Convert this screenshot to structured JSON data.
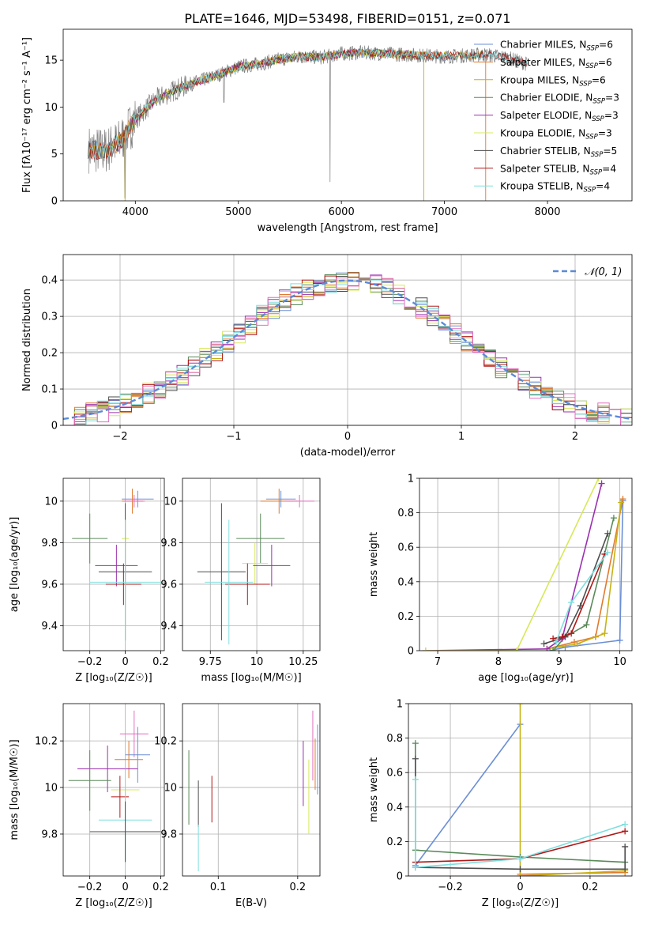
{
  "figure": {
    "title": "PLATE=1646, MJD=53498, FIBERID=0151, z=0.071"
  },
  "model_colors": {
    "Chabrier MILES": "#6b8fd6",
    "Salpeter MILES": "#e07a2e",
    "Kroupa MILES": "#c7b215",
    "Chabrier ELODIE": "#5a8a5a",
    "Salpeter ELODIE": "#9b30b0",
    "Kroupa ELODIE": "#d8e858",
    "Chabrier STELIB": "#4d4d4d",
    "Salpeter STELIB": "#b01818",
    "Kroupa STELIB": "#7fdede",
    "Pink": "#e06fc0",
    "Data": "#7f7f7f",
    "Gaussian": "#5b8ad8",
    "grid": "#b0b0b0"
  },
  "chart_data": [
    {
      "id": "spectrum",
      "type": "line",
      "title": "PLATE=1646, MJD=53498, FIBERID=0151, z=0.071",
      "xlabel": "wavelength [Angstrom, rest frame]",
      "ylabel": "Flux [fλ10⁻¹⁷ erg cm⁻² s⁻¹ A⁻¹]",
      "xlim": [
        3300,
        8820
      ],
      "ylim": [
        0,
        18.3
      ],
      "xticks": [
        4000,
        5000,
        6000,
        7000,
        8000
      ],
      "yticks": [
        0,
        5,
        10,
        15
      ],
      "grid": false,
      "legend_position": "right",
      "series": [
        {
          "name": "Chabrier MILES, N",
          "sub": "SSP",
          "suffix": "=6"
        },
        {
          "name": "Salpeter MILES, N",
          "sub": "SSP",
          "suffix": "=6"
        },
        {
          "name": "Kroupa MILES, N",
          "sub": "SSP",
          "suffix": "=6"
        },
        {
          "name": "Chabrier ELODIE, N",
          "sub": "SSP",
          "suffix": "=3"
        },
        {
          "name": "Salpeter ELODIE, N",
          "sub": "SSP",
          "suffix": "=3"
        },
        {
          "name": "Kroupa ELODIE, N",
          "sub": "SSP",
          "suffix": "=3"
        },
        {
          "name": "Chabrier STELIB, N",
          "sub": "SSP",
          "suffix": "=5"
        },
        {
          "name": "Salpeter STELIB, N",
          "sub": "SSP",
          "suffix": "=4"
        },
        {
          "name": "Kroupa STELIB, N",
          "sub": "SSP",
          "suffix": "=4"
        }
      ],
      "continuum": {
        "x": [
          3550,
          3700,
          3850,
          4000,
          4100,
          4200,
          4400,
          4600,
          4800,
          5000,
          5200,
          5400,
          5600,
          5800,
          6000,
          6200,
          6400,
          6600,
          6800,
          7000,
          7200,
          7400,
          7600,
          7800
        ],
        "y": [
          5.5,
          5.3,
          6.3,
          8.7,
          9.8,
          10.8,
          11.9,
          12.7,
          13.4,
          14.3,
          14.6,
          15.1,
          15.4,
          15.3,
          15.7,
          15.8,
          15.7,
          15.6,
          15.5,
          15.4,
          15.5,
          15.6,
          15.3,
          14.6
        ]
      }
    },
    {
      "id": "residuals",
      "type": "line",
      "xlabel": "(data-model)/error",
      "ylabel": "Normed distribution",
      "xlim": [
        -2.5,
        2.5
      ],
      "ylim": [
        0,
        0.47
      ],
      "xticks": [
        -2,
        -1,
        0,
        1,
        2
      ],
      "yticks": [
        0.0,
        0.1,
        0.2,
        0.3,
        0.4
      ],
      "grid": true,
      "legend_position": "top-right",
      "gaussian_label": "𝒩(0, 1)",
      "bin_width": 0.1,
      "hist_series_count": 10
    },
    {
      "id": "z-age",
      "type": "scatter",
      "xlabel": "Z [log₁₀(Z/Z☉)]",
      "ylabel": "age  [log₁₀(age/yr)]",
      "xlim": [
        -0.35,
        0.22
      ],
      "ylim": [
        9.28,
        10.11
      ],
      "xticks": [
        -0.2,
        0.0,
        0.2
      ],
      "yticks": [
        9.4,
        9.6,
        9.8,
        10.0
      ],
      "grid": true,
      "points": [
        {
          "model": "Chabrier MILES",
          "x": 0.07,
          "y": 10.01,
          "xerr": 0.09,
          "yerr": 0.04
        },
        {
          "model": "Salpeter MILES",
          "x": 0.04,
          "y": 10.0,
          "xerr": 0.06,
          "yerr": 0.06
        },
        {
          "model": "Pink",
          "x": 0.05,
          "y": 10.0,
          "xerr": 0.06,
          "yerr": 0.03
        },
        {
          "model": "Chabrier ELODIE",
          "x": -0.2,
          "y": 9.82,
          "xerr": 0.1,
          "yerr": 0.12
        },
        {
          "model": "Kroupa ELODIE",
          "x": 0.0,
          "y": 9.82,
          "xerr": 0.02,
          "yerr": 0.1
        },
        {
          "model": "Salpeter ELODIE",
          "x": -0.05,
          "y": 9.69,
          "xerr": 0.12,
          "yerr": 0.1
        },
        {
          "model": "Chabrier STELIB",
          "x": 0.0,
          "y": 9.66,
          "xerr": 0.15,
          "yerr": 0.33
        },
        {
          "model": "Salpeter STELIB",
          "x": -0.01,
          "y": 9.6,
          "xerr": 0.1,
          "yerr": 0.1
        },
        {
          "model": "Kroupa STELIB",
          "x": 0.0,
          "y": 9.61,
          "xerr": 0.2,
          "yerr": 0.3
        }
      ]
    },
    {
      "id": "mass-age",
      "type": "scatter",
      "xlabel": "mass [log₁₀(M/M☉)]",
      "ylabel": "",
      "xlim": [
        9.6,
        10.34
      ],
      "ylim": [
        9.28,
        10.11
      ],
      "xticks": [
        9.75,
        10.0,
        10.25
      ],
      "yticks": [
        9.4,
        9.6,
        9.8,
        10.0
      ],
      "grid": true,
      "points": [
        {
          "model": "Chabrier MILES",
          "x": 10.13,
          "y": 10.01,
          "xerr": 0.08,
          "yerr": 0.04
        },
        {
          "model": "Salpeter MILES",
          "x": 10.12,
          "y": 10.0,
          "xerr": 0.1,
          "yerr": 0.06
        },
        {
          "model": "Pink",
          "x": 10.23,
          "y": 10.0,
          "xerr": 0.08,
          "yerr": 0.03
        },
        {
          "model": "Chabrier ELODIE",
          "x": 10.02,
          "y": 9.82,
          "xerr": 0.13,
          "yerr": 0.12
        },
        {
          "model": "Kroupa ELODIE",
          "x": 9.99,
          "y": 9.7,
          "xerr": 0.07,
          "yerr": 0.1
        },
        {
          "model": "Salpeter ELODIE",
          "x": 10.08,
          "y": 9.69,
          "xerr": 0.1,
          "yerr": 0.1
        },
        {
          "model": "Chabrier STELIB",
          "x": 9.81,
          "y": 9.66,
          "xerr": 0.13,
          "yerr": 0.33
        },
        {
          "model": "Salpeter STELIB",
          "x": 9.95,
          "y": 9.6,
          "xerr": 0.12,
          "yerr": 0.1
        },
        {
          "model": "Kroupa STELIB",
          "x": 9.85,
          "y": 9.61,
          "xerr": 0.13,
          "yerr": 0.3
        }
      ]
    },
    {
      "id": "age-massweight",
      "type": "line",
      "xlabel": "age  [log₁₀(age/yr)]",
      "ylabel": "mass weight",
      "xlim": [
        6.7,
        10.2
      ],
      "ylim": [
        0,
        1.0
      ],
      "xticks": [
        7,
        8,
        9,
        10
      ],
      "yticks": [
        0.0,
        0.2,
        0.4,
        0.6,
        0.8,
        1.0
      ],
      "grid": true,
      "series": [
        {
          "model": "Chabrier MILES",
          "x": [
            8.85,
            9.1,
            10.0,
            10.05
          ],
          "y": [
            0.0,
            0.02,
            0.06,
            0.87
          ]
        },
        {
          "model": "Salpeter MILES",
          "x": [
            8.8,
            9.25,
            9.6,
            10.05
          ],
          "y": [
            0.01,
            0.05,
            0.08,
            0.88
          ]
        },
        {
          "model": "Kroupa MILES",
          "x": [
            8.8,
            9.3,
            9.75,
            10.02
          ],
          "y": [
            0.01,
            0.04,
            0.1,
            0.86
          ]
        },
        {
          "model": "Chabrier ELODIE",
          "x": [
            8.9,
            9.1,
            9.45,
            9.9
          ],
          "y": [
            0.0,
            0.08,
            0.15,
            0.77
          ]
        },
        {
          "model": "Salpeter ELODIE",
          "x": [
            6.8,
            8.8,
            9.05,
            9.7
          ],
          "y": [
            0.0,
            0.01,
            0.07,
            0.97
          ]
        },
        {
          "model": "Kroupa ELODIE",
          "x": [
            6.8,
            8.3,
            9.65
          ],
          "y": [
            0.0,
            0.0,
            1.0
          ]
        },
        {
          "model": "Chabrier STELIB",
          "x": [
            8.75,
            9.1,
            9.35,
            9.8
          ],
          "y": [
            0.04,
            0.08,
            0.26,
            0.68
          ]
        },
        {
          "model": "Salpeter STELIB",
          "x": [
            8.9,
            9.05,
            9.2,
            9.75
          ],
          "y": [
            0.07,
            0.08,
            0.1,
            0.56
          ]
        },
        {
          "model": "Kroupa STELIB",
          "x": [
            8.95,
            9.2,
            9.8
          ],
          "y": [
            0.05,
            0.28,
            0.57
          ]
        }
      ]
    },
    {
      "id": "z-mass",
      "type": "scatter",
      "xlabel": "Z [log₁₀(Z/Z☉)]",
      "ylabel": "mass [log₁₀(M/M☉)]",
      "xlim": [
        -0.35,
        0.22
      ],
      "ylim": [
        9.62,
        10.36
      ],
      "xticks": [
        -0.2,
        0.0,
        0.2
      ],
      "yticks": [
        9.8,
        10.0,
        10.2
      ],
      "grid": true,
      "points": [
        {
          "model": "Pink",
          "x": 0.05,
          "y": 10.23,
          "xerr": 0.08,
          "yerr": 0.1
        },
        {
          "model": "Chabrier MILES",
          "x": 0.07,
          "y": 10.14,
          "xerr": 0.07,
          "yerr": 0.12
        },
        {
          "model": "Salpeter MILES",
          "x": 0.02,
          "y": 10.12,
          "xerr": 0.08,
          "yerr": 0.08
        },
        {
          "model": "Salpeter ELODIE",
          "x": -0.1,
          "y": 10.08,
          "xerr": 0.17,
          "yerr": 0.1
        },
        {
          "model": "Chabrier ELODIE",
          "x": -0.2,
          "y": 10.03,
          "xerr": 0.12,
          "yerr": 0.13
        },
        {
          "model": "Kroupa ELODIE",
          "x": 0.0,
          "y": 9.99,
          "xerr": 0.08,
          "yerr": 0.05
        },
        {
          "model": "Salpeter STELIB",
          "x": -0.03,
          "y": 9.96,
          "xerr": 0.05,
          "yerr": 0.09
        },
        {
          "model": "Kroupa STELIB",
          "x": 0.0,
          "y": 9.86,
          "xerr": 0.15,
          "yerr": 0.22
        },
        {
          "model": "Chabrier STELIB",
          "x": 0.0,
          "y": 9.81,
          "xerr": 0.2,
          "yerr": 0.13
        }
      ]
    },
    {
      "id": "ebv-mass",
      "type": "scatter",
      "xlabel": "E(B-V)",
      "ylabel": "",
      "xlim": [
        0.055,
        0.228
      ],
      "ylim": [
        9.62,
        10.36
      ],
      "xticks": [
        0.1,
        0.2
      ],
      "yticks": [
        9.8,
        10.0,
        10.2
      ],
      "grid": true,
      "points": [
        {
          "model": "Chabrier ELODIE",
          "x": 0.063,
          "y": 10.0,
          "yerr": 0.16
        },
        {
          "model": "Chabrier STELIB",
          "x": 0.075,
          "y": 9.93,
          "yerr": 0.1
        },
        {
          "model": "Kroupa STELIB",
          "x": 0.075,
          "y": 9.74,
          "yerr": 0.1
        },
        {
          "model": "Salpeter STELIB",
          "x": 0.092,
          "y": 9.95,
          "yerr": 0.1
        },
        {
          "model": "Salpeter ELODIE",
          "x": 0.207,
          "y": 10.06,
          "yerr": 0.14
        },
        {
          "model": "Kroupa ELODIE",
          "x": 0.214,
          "y": 9.96,
          "yerr": 0.16
        },
        {
          "model": "Pink",
          "x": 0.219,
          "y": 10.18,
          "yerr": 0.15
        },
        {
          "model": "Salpeter MILES",
          "x": 0.222,
          "y": 10.1,
          "yerr": 0.11
        },
        {
          "model": "Chabrier MILES",
          "x": 0.225,
          "y": 10.12,
          "yerr": 0.15
        }
      ]
    },
    {
      "id": "z-massweight",
      "type": "line",
      "xlabel": "Z [log₁₀(Z/Z☉)]",
      "ylabel": "mass weight",
      "xlim": [
        -0.32,
        0.32
      ],
      "ylim": [
        0,
        1.0
      ],
      "xticks": [
        -0.2,
        0.0,
        0.2
      ],
      "yticks": [
        0.0,
        0.2,
        0.4,
        0.6,
        0.8,
        1.0
      ],
      "grid": true,
      "series": [
        {
          "model": "Chabrier MILES",
          "x": [
            -0.3,
            0.0
          ],
          "y": [
            0.06,
            0.88
          ]
        },
        {
          "model": "Salpeter MILES",
          "x": [
            0.0,
            0.3
          ],
          "y": [
            0.01,
            0.02
          ]
        },
        {
          "model": "Kroupa MILES",
          "x": [
            0.0,
            0.0,
            0.3
          ],
          "y": [
            1.0,
            0.0,
            0.03
          ]
        },
        {
          "model": "Chabrier ELODIE",
          "x": [
            -0.3,
            -0.3,
            0.0,
            0.3
          ],
          "y": [
            0.77,
            0.15,
            0.11,
            0.08
          ]
        },
        {
          "model": "Chabrier STELIB",
          "x": [
            -0.3,
            -0.3,
            0.0,
            0.3,
            0.3
          ],
          "y": [
            0.68,
            0.05,
            0.04,
            0.04,
            0.17
          ]
        },
        {
          "model": "Salpeter STELIB",
          "x": [
            -0.3,
            0.0,
            0.3
          ],
          "y": [
            0.08,
            0.1,
            0.26
          ]
        },
        {
          "model": "Kroupa STELIB",
          "x": [
            -0.3,
            -0.3,
            0.0,
            0.3
          ],
          "y": [
            0.56,
            0.05,
            0.1,
            0.3
          ]
        }
      ]
    }
  ]
}
